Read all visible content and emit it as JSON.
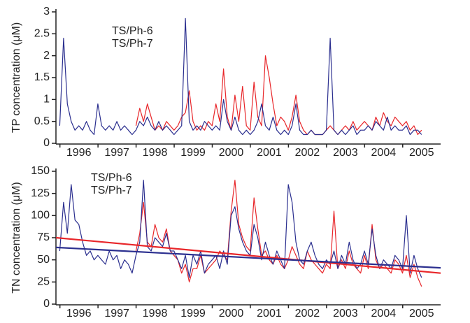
{
  "chart_data": [
    {
      "type": "line",
      "ylabel": "TP concentration (μM)",
      "legend": "upper left",
      "x": [
        1996,
        1996.1,
        1996.2,
        1996.3,
        1996.4,
        1996.5,
        1996.6,
        1996.7,
        1996.8,
        1996.9,
        1997,
        1997.1,
        1997.2,
        1997.3,
        1997.4,
        1997.5,
        1997.6,
        1997.7,
        1997.8,
        1997.9,
        1998,
        1998.1,
        1998.2,
        1998.3,
        1998.4,
        1998.5,
        1998.6,
        1998.7,
        1998.8,
        1998.9,
        1999,
        1999.1,
        1999.2,
        1999.3,
        1999.4,
        1999.5,
        1999.6,
        1999.7,
        1999.8,
        1999.9,
        2000,
        2000.1,
        2000.2,
        2000.3,
        2000.4,
        2000.5,
        2000.6,
        2000.7,
        2000.8,
        2000.9,
        2001,
        2001.1,
        2001.2,
        2001.3,
        2001.4,
        2001.5,
        2001.6,
        2001.7,
        2001.8,
        2001.9,
        2002,
        2002.1,
        2002.2,
        2002.3,
        2002.4,
        2002.5,
        2002.6,
        2002.7,
        2002.8,
        2002.9,
        2003,
        2003.1,
        2003.2,
        2003.3,
        2003.4,
        2003.5,
        2003.6,
        2003.7,
        2003.8,
        2003.9,
        2004,
        2004.1,
        2004.2,
        2004.3,
        2004.4,
        2004.5,
        2004.6,
        2004.7,
        2004.8,
        2004.9,
        2005,
        2005.1,
        2005.2,
        2005.3,
        2005.4,
        2005.5
      ],
      "xlim": [
        1995.9,
        2006.0
      ],
      "xticks": [
        {
          "value": 1996.5,
          "label": "1996"
        },
        {
          "value": 1997.5,
          "label": "1997"
        },
        {
          "value": 1998.5,
          "label": "1998"
        },
        {
          "value": 1999.5,
          "label": "1999"
        },
        {
          "value": 2000.5,
          "label": "2000"
        },
        {
          "value": 2001.5,
          "label": "2001"
        },
        {
          "value": 2002.5,
          "label": "2002"
        },
        {
          "value": 2003.5,
          "label": "2003"
        },
        {
          "value": 2004.5,
          "label": "2004"
        },
        {
          "value": 2005.5,
          "label": "2005"
        }
      ],
      "ylim": [
        0,
        3
      ],
      "yticks": [
        0,
        0.5,
        1,
        1.5,
        2,
        2.5,
        3
      ],
      "series": [
        {
          "name": "TS/Ph-6",
          "color": "#e8262a",
          "values": [
            null,
            null,
            null,
            null,
            null,
            null,
            null,
            null,
            null,
            null,
            null,
            null,
            null,
            null,
            null,
            null,
            null,
            null,
            null,
            null,
            0.4,
            0.8,
            0.5,
            0.9,
            0.6,
            0.3,
            0.4,
            0.3,
            0.5,
            0.4,
            0.3,
            0.4,
            0.6,
            0.7,
            1.2,
            0.5,
            0.3,
            0.4,
            0.3,
            0.5,
            0.4,
            0.9,
            0.5,
            1.7,
            0.6,
            0.3,
            1.1,
            0.5,
            1.3,
            0.4,
            0.3,
            1.4,
            0.6,
            0.4,
            2.0,
            1.5,
            0.9,
            0.4,
            0.6,
            0.5,
            0.3,
            0.6,
            1.1,
            0.5,
            0.3,
            0.2,
            0.3,
            0.2,
            0.2,
            0.2,
            0.3,
            0.4,
            0.3,
            0.2,
            0.3,
            0.4,
            0.3,
            0.5,
            0.3,
            0.4,
            0.5,
            0.4,
            0.3,
            0.6,
            0.4,
            0.7,
            0.5,
            0.4,
            0.6,
            0.5,
            0.4,
            0.5,
            0.3,
            0.4,
            0.2,
            0.3
          ]
        },
        {
          "name": "TS/Ph-7",
          "color": "#2b2f8f",
          "values": [
            0.4,
            2.4,
            0.9,
            0.5,
            0.3,
            0.4,
            0.3,
            0.5,
            0.3,
            0.2,
            0.9,
            0.4,
            0.3,
            0.4,
            0.3,
            0.5,
            0.3,
            0.4,
            0.3,
            0.2,
            0.3,
            0.5,
            0.4,
            0.6,
            0.4,
            0.3,
            0.5,
            0.3,
            0.4,
            0.3,
            0.2,
            0.3,
            0.4,
            2.85,
            0.5,
            0.3,
            0.4,
            0.3,
            0.5,
            0.4,
            0.3,
            0.4,
            0.3,
            1.0,
            0.5,
            0.3,
            0.6,
            0.3,
            0.2,
            0.3,
            0.2,
            0.3,
            0.5,
            0.9,
            0.4,
            0.3,
            0.6,
            0.3,
            0.2,
            0.3,
            0.2,
            0.4,
            0.9,
            0.3,
            0.2,
            0.2,
            0.3,
            0.2,
            0.2,
            0.2,
            0.3,
            2.4,
            0.3,
            0.2,
            0.3,
            0.2,
            0.3,
            0.4,
            0.2,
            0.3,
            0.3,
            0.4,
            0.3,
            0.5,
            0.4,
            0.3,
            0.6,
            0.3,
            0.4,
            0.3,
            0.3,
            0.4,
            0.2,
            0.3,
            0.3,
            0.2
          ]
        }
      ]
    },
    {
      "type": "line",
      "ylabel": "TN concentration (μM)",
      "legend": "upper left",
      "x": [
        1996,
        1996.1,
        1996.2,
        1996.3,
        1996.4,
        1996.5,
        1996.6,
        1996.7,
        1996.8,
        1996.9,
        1997,
        1997.1,
        1997.2,
        1997.3,
        1997.4,
        1997.5,
        1997.6,
        1997.7,
        1997.8,
        1997.9,
        1998,
        1998.1,
        1998.2,
        1998.3,
        1998.4,
        1998.5,
        1998.6,
        1998.7,
        1998.8,
        1998.9,
        1999,
        1999.1,
        1999.2,
        1999.3,
        1999.4,
        1999.5,
        1999.6,
        1999.7,
        1999.8,
        1999.9,
        2000,
        2000.1,
        2000.2,
        2000.3,
        2000.4,
        2000.5,
        2000.6,
        2000.7,
        2000.8,
        2000.9,
        2001,
        2001.1,
        2001.2,
        2001.3,
        2001.4,
        2001.5,
        2001.6,
        2001.7,
        2001.8,
        2001.9,
        2002,
        2002.1,
        2002.2,
        2002.3,
        2002.4,
        2002.5,
        2002.6,
        2002.7,
        2002.8,
        2002.9,
        2003,
        2003.1,
        2003.2,
        2003.3,
        2003.4,
        2003.5,
        2003.6,
        2003.7,
        2003.8,
        2003.9,
        2004,
        2004.1,
        2004.2,
        2004.3,
        2004.4,
        2004.5,
        2004.6,
        2004.7,
        2004.8,
        2004.9,
        2005,
        2005.1,
        2005.2,
        2005.3,
        2005.4,
        2005.5
      ],
      "xlim": [
        1995.9,
        2006.0
      ],
      "xticks": [
        {
          "value": 1996.5,
          "label": "1996"
        },
        {
          "value": 1997.5,
          "label": "1997"
        },
        {
          "value": 1998.5,
          "label": "1998"
        },
        {
          "value": 1999.5,
          "label": "1999"
        },
        {
          "value": 2000.5,
          "label": "2000"
        },
        {
          "value": 2001.5,
          "label": "2001"
        },
        {
          "value": 2002.5,
          "label": "2002"
        },
        {
          "value": 2003.5,
          "label": "2003"
        },
        {
          "value": 2004.5,
          "label": "2004"
        },
        {
          "value": 2005.5,
          "label": "2005"
        }
      ],
      "ylim": [
        0,
        150
      ],
      "yticks": [
        0,
        25,
        50,
        75,
        100,
        125,
        150
      ],
      "series": [
        {
          "name": "TS/Ph-6",
          "color": "#e8262a",
          "values": [
            null,
            null,
            null,
            null,
            null,
            null,
            null,
            null,
            null,
            null,
            null,
            null,
            null,
            null,
            null,
            null,
            null,
            null,
            null,
            null,
            60,
            80,
            115,
            70,
            65,
            90,
            75,
            70,
            85,
            60,
            55,
            50,
            35,
            45,
            25,
            40,
            40,
            55,
            35,
            40,
            45,
            50,
            60,
            55,
            50,
            105,
            140,
            90,
            75,
            65,
            60,
            120,
            85,
            55,
            60,
            50,
            45,
            55,
            45,
            40,
            50,
            65,
            55,
            45,
            40,
            60,
            50,
            45,
            40,
            35,
            45,
            40,
            105,
            40,
            50,
            40,
            60,
            45,
            40,
            35,
            55,
            40,
            90,
            50,
            40,
            45,
            40,
            35,
            50,
            45,
            35,
            55,
            30,
            45,
            30,
            20
          ]
        },
        {
          "name": "TS/Ph-7",
          "color": "#2b2f8f",
          "values": [
            60,
            115,
            80,
            135,
            95,
            90,
            70,
            55,
            60,
            50,
            55,
            50,
            45,
            60,
            50,
            55,
            40,
            50,
            45,
            35,
            55,
            70,
            140,
            65,
            60,
            75,
            70,
            65,
            80,
            60,
            60,
            50,
            40,
            55,
            30,
            55,
            45,
            60,
            35,
            45,
            50,
            55,
            40,
            60,
            45,
            100,
            110,
            85,
            70,
            60,
            55,
            90,
            75,
            50,
            70,
            55,
            45,
            60,
            50,
            40,
            135,
            115,
            70,
            50,
            45,
            60,
            70,
            55,
            45,
            40,
            50,
            45,
            60,
            40,
            55,
            45,
            70,
            50,
            40,
            45,
            60,
            45,
            85,
            55,
            40,
            50,
            45,
            40,
            55,
            50,
            40,
            100,
            35,
            55,
            40,
            30
          ]
        }
      ],
      "trends": [
        {
          "color": "#e8262a",
          "x": [
            1995.9,
            2006.0
          ],
          "values": [
            75,
            35
          ]
        },
        {
          "color": "#2b2f8f",
          "x": [
            1995.9,
            2006.0
          ],
          "values": [
            64,
            41
          ]
        }
      ]
    }
  ]
}
